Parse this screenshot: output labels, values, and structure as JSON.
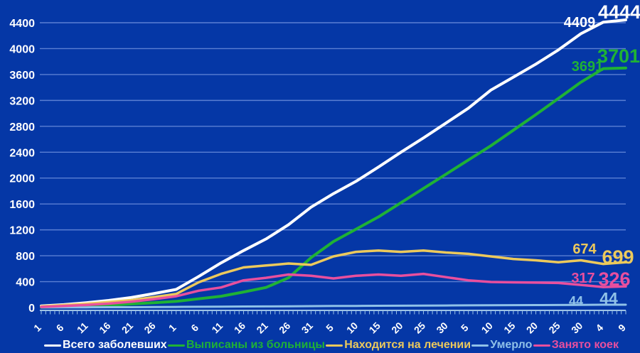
{
  "chart": {
    "background": "#0537a6",
    "gridline_color": "#6b8cdc",
    "axis_color": "#9dc3e6",
    "text_color": "#ffffff"
  },
  "chart_data": {
    "type": "line",
    "title": "",
    "xlabel": "",
    "ylabel": "",
    "ylim": [
      0,
      4400
    ],
    "ytick_step": 400,
    "ytick_labels": [
      "0",
      "400",
      "800",
      "1200",
      "1600",
      "2000",
      "2400",
      "2800",
      "3200",
      "3600",
      "4000",
      "4400"
    ],
    "grid": true,
    "legend_position": "bottom",
    "categories": [
      "1",
      "6",
      "11",
      "16",
      "21",
      "26",
      "1",
      "6",
      "11",
      "16",
      "21",
      "26",
      "31",
      "5",
      "10",
      "15",
      "20",
      "25",
      "30",
      "5",
      "10",
      "15",
      "20",
      "25",
      "30",
      "4",
      "9"
    ],
    "minor_ticks_per_interval": 5,
    "series": [
      {
        "name": "Всего заболевших",
        "color": "#ffffff",
        "values": [
          25,
          45,
          75,
          110,
          155,
          215,
          280,
          480,
          690,
          880,
          1060,
          1280,
          1550,
          1760,
          1950,
          2170,
          2400,
          2620,
          2850,
          3080,
          3360,
          3560,
          3760,
          3980,
          4230,
          4409,
          4444
        ],
        "prev_label": "4409",
        "final_label": "4444"
      },
      {
        "name": "Выписаны из больницы",
        "color": "#1fb235",
        "values": [
          5,
          12,
          20,
          35,
          55,
          75,
          95,
          135,
          175,
          240,
          310,
          460,
          770,
          1020,
          1210,
          1400,
          1620,
          1840,
          2060,
          2280,
          2500,
          2740,
          2980,
          3230,
          3480,
          3691,
          3701
        ],
        "prev_label": "3691",
        "final_label": "3701"
      },
      {
        "name": "Находится на лечении",
        "color": "#ecc95c",
        "values": [
          20,
          38,
          58,
          85,
          115,
          160,
          210,
          390,
          520,
          620,
          650,
          680,
          660,
          790,
          860,
          880,
          860,
          880,
          850,
          830,
          790,
          750,
          730,
          700,
          730,
          674,
          699
        ],
        "prev_label": "674",
        "final_label": "699"
      },
      {
        "name": "Умерло",
        "color": "#8fc1e8",
        "values": [
          1,
          2,
          3,
          5,
          6,
          8,
          10,
          12,
          14,
          16,
          18,
          20,
          22,
          24,
          25,
          27,
          28,
          30,
          32,
          34,
          35,
          37,
          38,
          40,
          42,
          44,
          44
        ],
        "prev_label": "44",
        "final_label": "44"
      },
      {
        "name": "Занято коек",
        "color": "#e84f9e",
        "values": [
          10,
          25,
          40,
          60,
          90,
          130,
          175,
          260,
          310,
          420,
          460,
          510,
          490,
          450,
          490,
          510,
          490,
          520,
          470,
          420,
          395,
          390,
          385,
          380,
          350,
          317,
          326
        ],
        "prev_label": "317",
        "final_label": "326"
      }
    ]
  }
}
